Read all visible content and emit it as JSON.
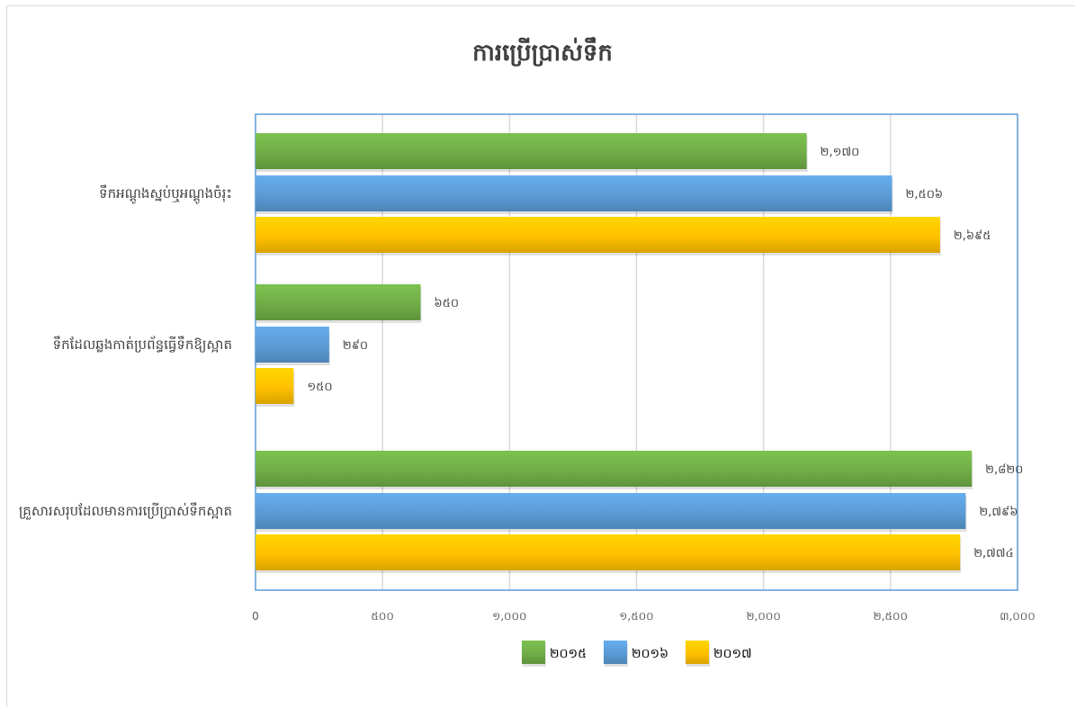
{
  "chart_data": {
    "type": "bar",
    "orientation": "horizontal",
    "title": "ការប្រើប្រាស់ទឹក",
    "categories": [
      "ទឹកអណ្ដូងស្នប់ឬអណ្ដូងចំរុះ",
      "ទឹកដែលឆ្លងកាត់ប្រព័ន្ធធ្វើទឹកឱ្យស្អាត",
      "គ្រួសារសរុបដែលមានការប្រើប្រាស់ទឹកស្អាត"
    ],
    "series": [
      {
        "name": "២០១៥",
        "color": "#70ad47",
        "values": [
          2170,
          650,
          2820
        ],
        "labels": [
          "២,១៧០",
          "៦៥០",
          "២,៨២០"
        ]
      },
      {
        "name": "២០១៦",
        "color": "#5b9bd5",
        "values": [
          2506,
          290,
          2796
        ],
        "labels": [
          "២,៥០៦",
          "២៩០",
          "២,៧៩៦"
        ]
      },
      {
        "name": "២០១៧",
        "color": "#ffc000",
        "values": [
          2695,
          150,
          2774
        ],
        "labels": [
          "២,៦៩៥",
          "១៥០",
          "២,៧៧៤"
        ]
      }
    ],
    "xlim": [
      0,
      3000
    ],
    "xticks": [
      0,
      500,
      1000,
      1500,
      2000,
      2500,
      3000
    ],
    "xtick_labels": [
      "0",
      "៥០០",
      "១,០០០",
      "១,៥០០",
      "២,០០០",
      "២,៥០០",
      "៣,០០០"
    ],
    "grid": true,
    "legend_position": "bottom"
  }
}
